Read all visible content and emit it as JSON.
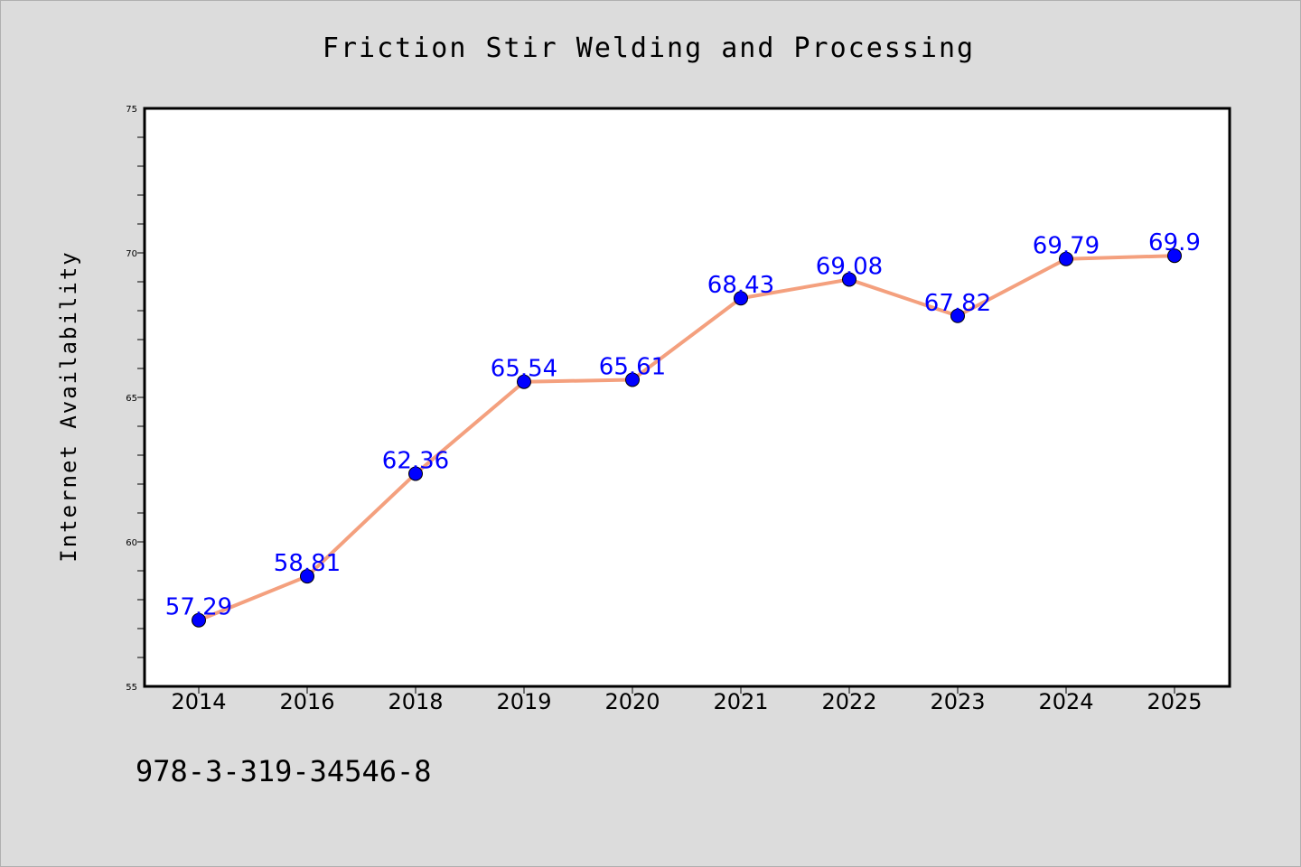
{
  "chart_data": {
    "type": "line",
    "title": "Friction Stir Welding and Processing",
    "xlabel": "",
    "ylabel": "Internet Availability",
    "categories": [
      "2014",
      "2016",
      "2018",
      "2019",
      "2020",
      "2021",
      "2022",
      "2023",
      "2024",
      "2025"
    ],
    "series": [
      {
        "values": [
          57.29,
          58.81,
          62.36,
          65.54,
          65.61,
          68.43,
          69.08,
          67.82,
          69.79,
          69.9
        ],
        "data_labels": [
          "57.29",
          "58.81",
          "62.36",
          "65.54",
          "65.61",
          "68.43",
          "69.08",
          "67.82",
          "69.79",
          "69.9"
        ],
        "line_color": "#f4a07e",
        "marker_color": "#0000ff"
      }
    ],
    "ylim": [
      55,
      75
    ],
    "yticks": [
      "55",
      "60",
      "65",
      "70",
      "75"
    ],
    "grid": false,
    "legend": "none",
    "data_label_color": "#0000ff"
  },
  "footer": {
    "isbn": "978-3-319-34546-8"
  },
  "colors": {
    "background": "#dcdcdc",
    "plot_background": "#ffffff"
  }
}
